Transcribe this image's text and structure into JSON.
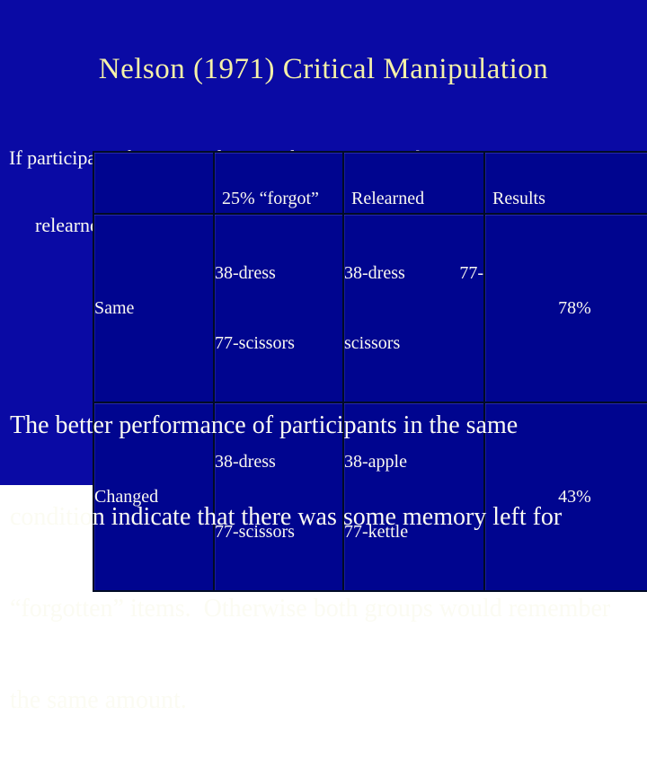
{
  "slide": {
    "title": "Nelson (1971) Critical Manipulation",
    "intro": {
      "line1": "If participants forgot “38-dress” and “77-scissors” then participants",
      "line2": "relearned either same pairs or changed pairs"
    },
    "table": {
      "headers": {
        "condition": "",
        "forgot": "25% “forgot”",
        "relearned": "Relearned",
        "results": "Results"
      },
      "rows": [
        {
          "condition": "Same",
          "forgot_line1": "38-dress",
          "forgot_line2": "77-scissors",
          "relearned_line1": "38-dress 77-",
          "relearned_line2": "scissors",
          "result": "78%"
        },
        {
          "condition": "Changed",
          "forgot_line1": "38-dress",
          "forgot_line2": "77-scissors",
          "relearned_line1": "38-apple",
          "relearned_line2": "77-kettle",
          "result": "43%"
        }
      ]
    },
    "conclusion": {
      "line1": "The better performance of participants in the same",
      "line2": "condition indicate that there was some memory left for",
      "line3": "“forgotten” items.  Otherwise both groups would remember",
      "line4": "the same amount."
    },
    "colors": {
      "background": "#0a0aa4",
      "table_cell_fill": "#00058f",
      "table_border": "#000b26",
      "title_text": "#f5f1a8",
      "body_text": "#fbfbf2"
    }
  }
}
